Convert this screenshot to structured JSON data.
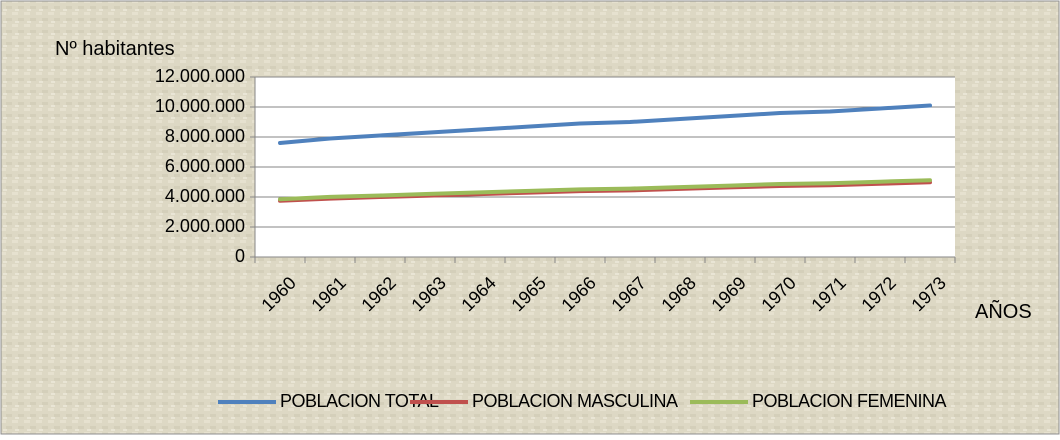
{
  "chart_data": {
    "type": "line",
    "y_label": "Nº habitantes",
    "x_label": "AÑOS",
    "categories": [
      "1960",
      "1961",
      "1962",
      "1963",
      "1964",
      "1965",
      "1966",
      "1967",
      "1968",
      "1969",
      "1970",
      "1971",
      "1972",
      "1973"
    ],
    "series": [
      {
        "name": "POBLACION TOTAL",
        "color": "#4f81bd",
        "values": [
          7600000,
          7900000,
          8100000,
          8300000,
          8500000,
          8700000,
          8900000,
          9000000,
          9200000,
          9400000,
          9600000,
          9700000,
          9900000,
          10100000
        ]
      },
      {
        "name": "POBLACION MASCULINA",
        "color": "#c0504d",
        "values": [
          3750000,
          3890000,
          4000000,
          4090000,
          4190000,
          4290000,
          4390000,
          4440000,
          4540000,
          4640000,
          4730000,
          4780000,
          4880000,
          4980000
        ]
      },
      {
        "name": "POBLACION FEMENINA",
        "color": "#9bbb59",
        "values": [
          3850000,
          4010000,
          4100000,
          4210000,
          4310000,
          4410000,
          4510000,
          4560000,
          4660000,
          4760000,
          4870000,
          4920000,
          5020000,
          5120000
        ]
      }
    ],
    "ylim": [
      0,
      12000000
    ],
    "yticks": [
      0,
      {
        "value": 2000000,
        "label": "2.000.000"
      },
      {
        "value": 4000000,
        "label": "4.000.000"
      },
      {
        "value": 6000000,
        "label": "6.000.000"
      },
      {
        "value": 8000000,
        "label": "8.000.000"
      },
      {
        "value": 10000000,
        "label": "10.000.000"
      },
      {
        "value": 12000000,
        "label": "12.000.000"
      }
    ],
    "grid": true,
    "legend": "bottom"
  }
}
